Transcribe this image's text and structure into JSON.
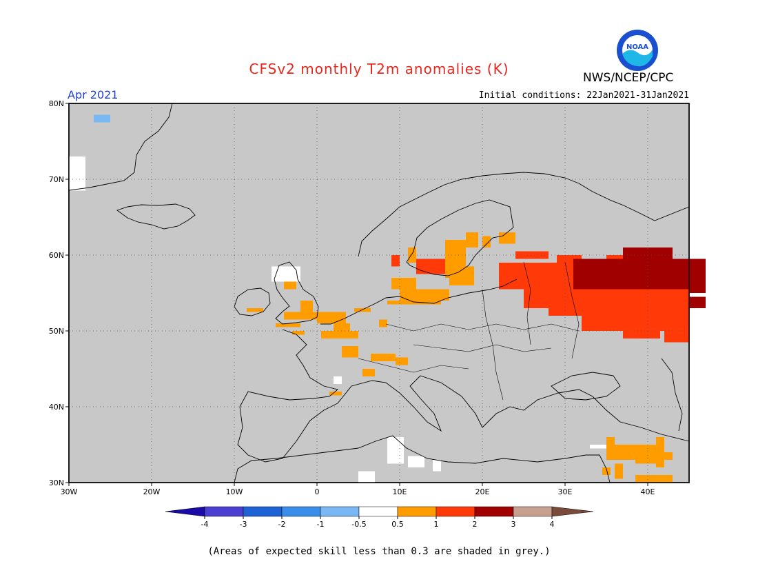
{
  "header": {
    "title": "CFSv2 monthly T2m anomalies (K)",
    "month": "Apr 2021",
    "initial_conditions": "Initial conditions: 22Jan2021-31Jan2021",
    "agency": "NWS/NCEP/CPC",
    "logo_text": "NOAA"
  },
  "map": {
    "lat_ticks": [
      "80N",
      "70N",
      "60N",
      "50N",
      "40N",
      "30N"
    ],
    "lon_ticks": [
      "30W",
      "20W",
      "10W",
      "0",
      "10E",
      "20E",
      "30E",
      "40E"
    ],
    "grid": true,
    "background_color": "#c8c8c8"
  },
  "legend": {
    "tick_labels": [
      "-4",
      "-3",
      "-2",
      "-1",
      "-0.5",
      "0.5",
      "1",
      "2",
      "3",
      "4"
    ],
    "colors": [
      "#1a0aa8",
      "#4a3fd0",
      "#1e63d6",
      "#3b8ee8",
      "#79b7f5",
      "#ffffff",
      "#ff9c00",
      "#ff3a08",
      "#a00000",
      "#c8a090",
      "#7a4a3a"
    ]
  },
  "footnote": "(Areas of expected skill less than 0.3 are shaded in grey.)",
  "anomaly_regions": [
    {
      "category": "0.5-1",
      "color": "#ff9c00",
      "region": "British Isles, France, Benelux, Scandinavia, Alps, Levant"
    },
    {
      "category": "1-2",
      "color": "#ff3a08",
      "region": "Baltics, western Russia, southern Sweden"
    },
    {
      "category": "2-3",
      "color": "#a00000",
      "region": "central Russia"
    },
    {
      "category": "-0.5-0.5",
      "color": "#ffffff",
      "region": "Greenland edge, Scotland, north Africa"
    },
    {
      "category": "-1 to -0.5",
      "color": "#79b7f5",
      "region": "Greenland"
    }
  ]
}
